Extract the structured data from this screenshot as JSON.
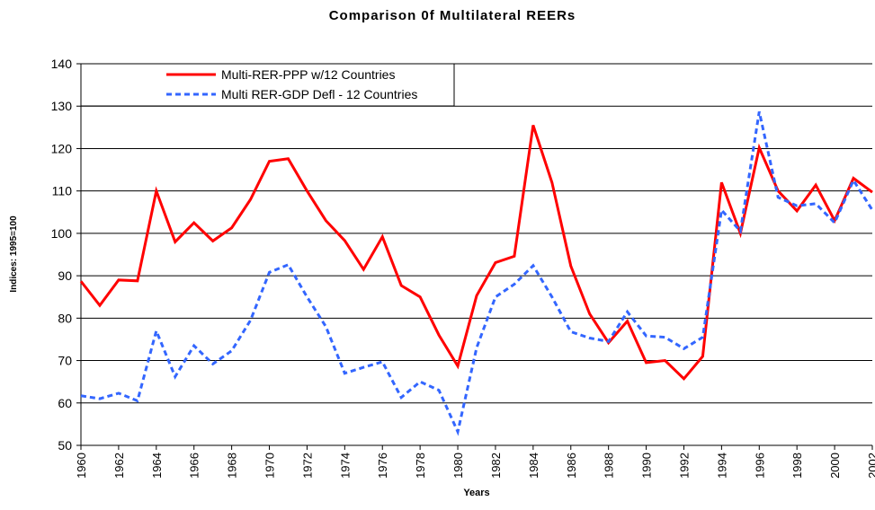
{
  "chart_data": {
    "type": "line",
    "title": "Comparison 0f Multilateral REERs",
    "x_label": "Years",
    "y_label": "Indices: 1995=100",
    "x": [
      1960,
      1961,
      1962,
      1963,
      1964,
      1965,
      1966,
      1967,
      1968,
      1969,
      1970,
      1971,
      1972,
      1973,
      1974,
      1975,
      1976,
      1977,
      1978,
      1979,
      1980,
      1981,
      1982,
      1983,
      1984,
      1985,
      1986,
      1987,
      1988,
      1989,
      1990,
      1991,
      1992,
      1993,
      1994,
      1995,
      1996,
      1997,
      1998,
      1999,
      2000,
      2001,
      2002
    ],
    "xlim": [
      1960,
      2002
    ],
    "xticks": [
      1960,
      1962,
      1964,
      1966,
      1968,
      1970,
      1972,
      1974,
      1976,
      1978,
      1980,
      1982,
      1984,
      1986,
      1988,
      1990,
      1992,
      1994,
      1996,
      1998,
      2000,
      2002
    ],
    "ylim": [
      50,
      140
    ],
    "yticks": [
      50,
      60,
      70,
      80,
      90,
      100,
      110,
      120,
      130,
      140
    ],
    "grid": true,
    "legend": "upper-left",
    "series": [
      {
        "name": "Multi-RER-PPP w/12 Countries",
        "color": "#ff0000",
        "dash": false,
        "values": [
          88.7,
          83,
          89,
          88.8,
          110,
          98,
          102.5,
          98.2,
          101.3,
          108,
          117,
          117.6,
          110,
          103,
          98.3,
          91.5,
          99.2,
          87.7,
          85,
          76,
          68.7,
          85.3,
          93.1,
          94.6,
          125.5,
          112,
          92.3,
          81,
          74.2,
          79.3,
          69.5,
          70,
          65.7,
          71,
          112,
          100,
          120.2,
          110,
          105.3,
          111.4,
          103,
          113,
          109.7
        ]
      },
      {
        "name": "Multi RER-GDP Defl - 12 Countries",
        "color": "#3366ff",
        "dash": true,
        "values": [
          61.7,
          61,
          62.3,
          60.5,
          77,
          66.2,
          73.5,
          69.2,
          72.3,
          79.5,
          90.8,
          92.6,
          85,
          78,
          67,
          68.4,
          69.7,
          61.3,
          65,
          63,
          53.2,
          73,
          85,
          88,
          92.4,
          85,
          76.8,
          75.3,
          74.5,
          81.5,
          75.8,
          75.5,
          72.8,
          75.5,
          105.5,
          100.5,
          128.7,
          108.5,
          106.5,
          107,
          102.5,
          112.5,
          105.5
        ]
      }
    ]
  }
}
